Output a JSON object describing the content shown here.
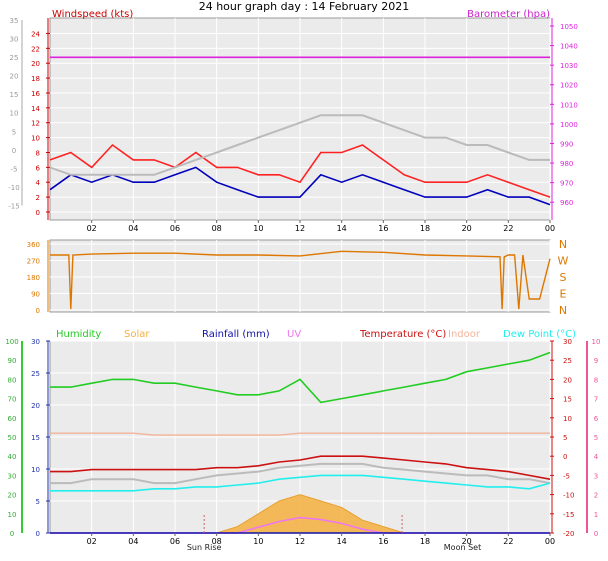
{
  "title": "24 hour graph day : 14 February 2021",
  "colors": {
    "wind_speed": "#ee1111",
    "wind_avg": "#0000bb",
    "wind_gust": "#ff2222",
    "pressure": "#dd22dd",
    "temp_other": "#bbbbbb",
    "direction": "#dd7700",
    "humidity": "#22cc22",
    "solar": "#f5b040",
    "rainfall": "#1111aa",
    "uv": "#ee77ee",
    "temperature": "#cc1111",
    "indoor": "#f2b49a",
    "dew_point": "#22eeee",
    "grid": "#ffffff",
    "plot_bg": "#ebebeb",
    "axis_green": "#33cc33",
    "axis_pink": "#ee5599",
    "axis_blue": "#2233aa"
  },
  "chart_data": [
    {
      "type": "line",
      "panel": "wind-barometer",
      "ylabel": "Windspeed (kts)",
      "y2label": "Barometer (hpa)",
      "ylim": [
        0,
        25
      ],
      "y2lim": [
        955,
        1050
      ],
      "outer_ylim": [
        -20,
        35
      ],
      "outer_yticks": [
        35,
        30,
        25,
        20,
        15,
        10,
        5,
        0,
        -5,
        -10,
        -15
      ],
      "outer_yticks_display": [
        "35",
        "30",
        "25",
        "20",
        "15",
        "10",
        "5",
        "0",
        "-5",
        "-10",
        "-15"
      ],
      "yticks": [
        24,
        22,
        20,
        18,
        16,
        14,
        12,
        10,
        8,
        6,
        4,
        2,
        0
      ],
      "y2ticks": [
        1050,
        1040,
        1030,
        1020,
        1010,
        1000,
        990,
        980,
        970,
        960
      ],
      "xticks": [
        "02",
        "04",
        "06",
        "08",
        "10",
        "12",
        "14",
        "16",
        "18",
        "20",
        "22",
        "00"
      ],
      "x": [
        0,
        1,
        2,
        3,
        4,
        5,
        6,
        7,
        8,
        9,
        10,
        11,
        12,
        13,
        14,
        15,
        16,
        17,
        18,
        19,
        20,
        21,
        22,
        23,
        24
      ],
      "series": [
        {
          "name": "Windspeed (kts)",
          "color_key": "wind_avg",
          "values": [
            3,
            5,
            4,
            5,
            4,
            4,
            5,
            6,
            4,
            3,
            2,
            2,
            2,
            5,
            4,
            5,
            4,
            3,
            2,
            2,
            2,
            3,
            2,
            2,
            1
          ]
        },
        {
          "name": "gust",
          "color_key": "wind_gust",
          "values": [
            7,
            8,
            6,
            9,
            7,
            7,
            6,
            8,
            6,
            6,
            5,
            5,
            4,
            8,
            8,
            9,
            7,
            5,
            4,
            4,
            4,
            5,
            4,
            3,
            2
          ]
        },
        {
          "name": "Barometer (hpa)",
          "color_key": "pressure",
          "axis": "right",
          "values": [
            1034,
            1034,
            1034,
            1034,
            1034,
            1034,
            1034,
            1034,
            1034,
            1034,
            1034,
            1034,
            1034,
            1034,
            1034,
            1034,
            1034,
            1034,
            1034,
            1034,
            1034,
            1034,
            1034,
            1034,
            1034
          ]
        },
        {
          "name": "",
          "color_key": "temp_other",
          "values": [
            6,
            5,
            5,
            5,
            5,
            5,
            6,
            7,
            8,
            9,
            10,
            11,
            12,
            13,
            13,
            13,
            12,
            11,
            10,
            10,
            9,
            9,
            8,
            7,
            7
          ]
        }
      ]
    },
    {
      "type": "scatter",
      "panel": "wind-direction",
      "ylim": [
        0,
        360
      ],
      "yticks": [
        360,
        270,
        180,
        90,
        0
      ],
      "right_labels": [
        "N",
        "W",
        "S",
        "E",
        "N"
      ],
      "x": [
        0,
        0.9,
        1.0,
        1.1,
        2,
        4,
        6,
        8,
        10,
        12,
        14,
        16,
        18,
        20,
        21.6,
        21.7,
        21.8,
        22,
        22.3,
        22.5,
        22.7,
        23,
        23.5,
        24
      ],
      "series": [
        {
          "name": "",
          "color_key": "direction",
          "values": [
            300,
            300,
            5,
            300,
            305,
            310,
            310,
            300,
            300,
            295,
            320,
            315,
            300,
            295,
            290,
            5,
            290,
            300,
            300,
            5,
            300,
            60,
            60,
            280
          ]
        }
      ]
    },
    {
      "type": "line",
      "panel": "temp-humidity",
      "legend": [
        "Humidity",
        "Solar",
        "Rainfall (mm)",
        "UV",
        "Temperature (°C)",
        "Indoor",
        "Dew Point (°C)"
      ],
      "outer_left_ylim": [
        0,
        100
      ],
      "outer_left_yticks": [
        100,
        90,
        80,
        70,
        60,
        50,
        40,
        30,
        20,
        10,
        0
      ],
      "left_ylim": [
        0,
        30
      ],
      "left_yticks": [
        30,
        25,
        20,
        15,
        10,
        5,
        0
      ],
      "right_ylim": [
        -20,
        30
      ],
      "right_yticks": [
        30,
        25,
        20,
        15,
        10,
        5,
        0,
        -5,
        -10,
        -15,
        -20
      ],
      "right_yticks_display": [
        "30",
        "25",
        "20",
        "15",
        "10",
        "5",
        "0",
        "-5",
        "-10",
        "-15",
        "-20"
      ],
      "outer_right_ylim": [
        0,
        10
      ],
      "outer_right_yticks": [
        10,
        9,
        8,
        7,
        6,
        5,
        4,
        3,
        2,
        1,
        0
      ],
      "xticks": [
        "02",
        "04",
        "06",
        "08",
        "10",
        "12",
        "14",
        "16",
        "18",
        "20",
        "22",
        "00"
      ],
      "annotations": [
        "Sun Rise",
        "Moon Set"
      ],
      "x": [
        0,
        1,
        2,
        3,
        4,
        5,
        6,
        7,
        8,
        9,
        10,
        11,
        12,
        13,
        14,
        15,
        16,
        17,
        18,
        19,
        20,
        21,
        22,
        23,
        24
      ],
      "series": [
        {
          "name": "Humidity",
          "color_key": "humidity",
          "axis": "right",
          "values": [
            18,
            18,
            19,
            20,
            20,
            19,
            19,
            18,
            17,
            16,
            16,
            17,
            20,
            14,
            15,
            16,
            17,
            18,
            19,
            20,
            22,
            23,
            24,
            25,
            27
          ]
        },
        {
          "name": "Solar",
          "color_key": "solar",
          "axis": "left",
          "values": [
            0,
            0,
            0,
            0,
            0,
            0,
            0,
            0,
            0,
            1,
            3,
            5,
            6,
            5,
            4,
            2,
            1,
            0,
            0,
            0,
            0,
            0,
            0,
            0,
            0
          ]
        },
        {
          "name": "Indoor",
          "color_key": "indoor",
          "axis": "right",
          "values": [
            6,
            6,
            6,
            6,
            6,
            5.5,
            5.5,
            5.5,
            5.5,
            5.5,
            5.5,
            5.5,
            6,
            6,
            6,
            6,
            6,
            6,
            6,
            6,
            6,
            6,
            6,
            6,
            6
          ]
        },
        {
          "name": "Temperature (°C)",
          "color_key": "temperature",
          "axis": "right",
          "values": [
            -4,
            -4,
            -3.5,
            -3.5,
            -3.5,
            -3.5,
            -3.5,
            -3.5,
            -3,
            -3,
            -2.5,
            -1.5,
            -1,
            0,
            0,
            0,
            -0.5,
            -1,
            -1.5,
            -2,
            -3,
            -3.5,
            -4,
            -5,
            -6
          ]
        },
        {
          "name": "",
          "color_key": "temp_other",
          "axis": "right",
          "values": [
            -7,
            -7,
            -6,
            -6,
            -6,
            -7,
            -7,
            -6,
            -5,
            -4.5,
            -4,
            -3,
            -2.5,
            -2,
            -2,
            -2,
            -3,
            -3.5,
            -4,
            -4.5,
            -5,
            -5,
            -6,
            -6,
            -7
          ]
        },
        {
          "name": "Dew Point (°C)",
          "color_key": "dew_point",
          "axis": "right",
          "values": [
            -9,
            -9,
            -9,
            -9,
            -9,
            -8.5,
            -8.5,
            -8,
            -8,
            -7.5,
            -7,
            -6,
            -5.5,
            -5,
            -5,
            -5,
            -5.5,
            -6,
            -6.5,
            -7,
            -7.5,
            -8,
            -8,
            -8.5,
            -7
          ]
        },
        {
          "name": "UV",
          "color_key": "uv",
          "axis": "outer_right",
          "values": [
            0,
            0,
            0,
            0,
            0,
            0,
            0,
            0,
            0,
            0,
            0.3,
            0.6,
            0.8,
            0.7,
            0.5,
            0.2,
            0,
            0,
            0,
            0,
            0,
            0,
            0,
            0,
            0
          ]
        },
        {
          "name": "Rainfall (mm)",
          "color_key": "rainfall",
          "axis": "left",
          "values": [
            0,
            0,
            0,
            0,
            0,
            0,
            0,
            0,
            0,
            0,
            0,
            0,
            0,
            0,
            0,
            0,
            0,
            0,
            0,
            0,
            0,
            0,
            0,
            0,
            0
          ]
        }
      ]
    }
  ]
}
